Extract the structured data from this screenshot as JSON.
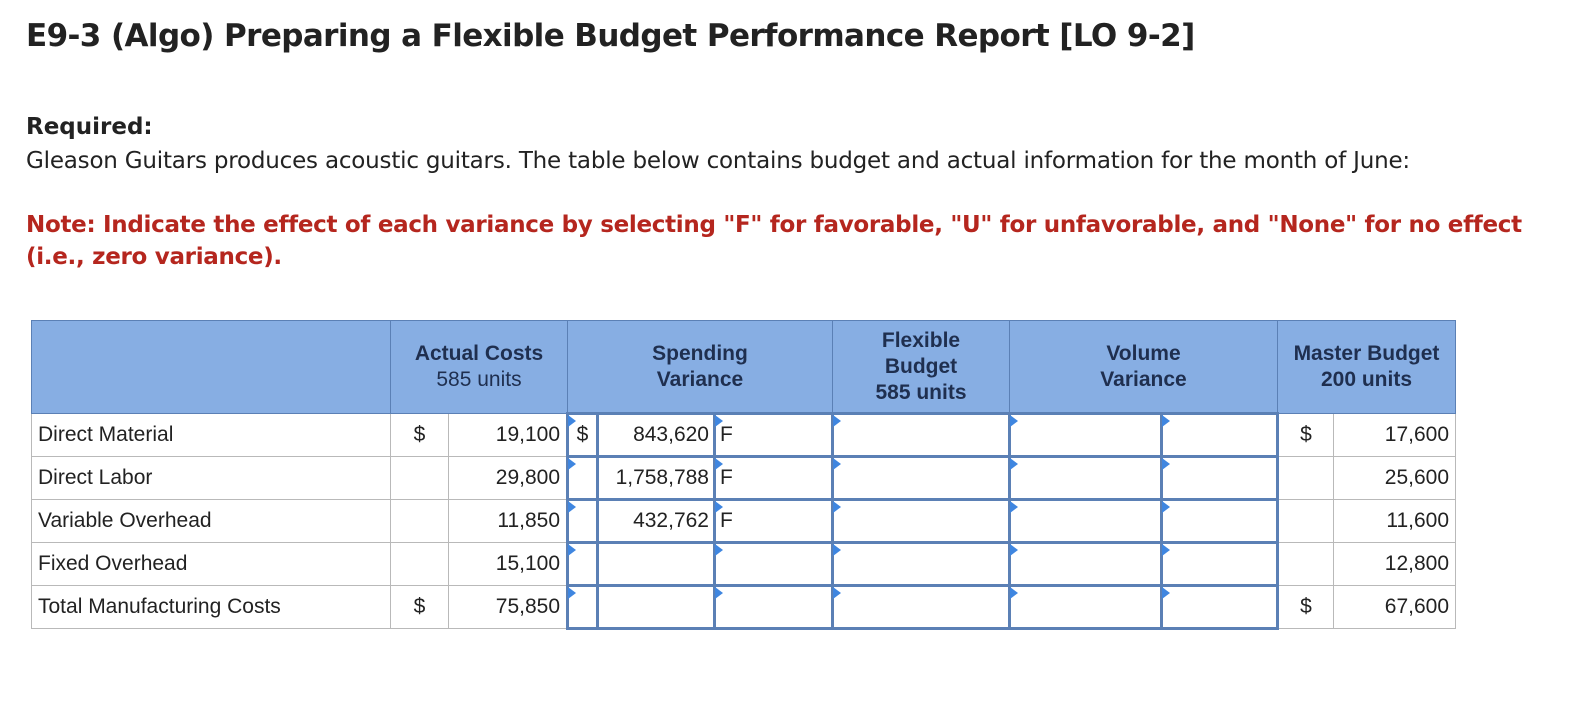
{
  "title": "E9-3 (Algo) Preparing a Flexible Budget Performance Report [LO 9-2]",
  "required_label": "Required:",
  "problem_text": "Gleason Guitars produces acoustic guitars. The table below contains budget and actual information for the month of June:",
  "note_text": "Note: Indicate the effect of each variance by selecting \"F\" for favorable, \"U\" for unfavorable, and \"None\" for no effect (i.e., zero variance).",
  "table": {
    "headers": {
      "actual_line1": "Actual Costs",
      "actual_line2": "585 units",
      "spending_line1": "Spending",
      "spending_line2": "Variance",
      "flexible_line1": "Flexible",
      "flexible_line2": "Budget",
      "flexible_line3": "585 units",
      "volume_line1": "Volume",
      "volume_line2": "Variance",
      "master_line1": "Master Budget",
      "master_line2": "200 units"
    },
    "rows": [
      {
        "label": "Direct Material",
        "actual_dollar": "$",
        "actual": "19,100",
        "spending_dollar": "$",
        "spending": "843,620",
        "spending_effect": "F",
        "flexible": "",
        "volume": "",
        "volume_effect": "",
        "master_dollar": "$",
        "master": "17,600"
      },
      {
        "label": "Direct Labor",
        "actual_dollar": "",
        "actual": "29,800",
        "spending_dollar": "",
        "spending": "1,758,788",
        "spending_effect": "F",
        "flexible": "",
        "volume": "",
        "volume_effect": "",
        "master_dollar": "",
        "master": "25,600"
      },
      {
        "label": "Variable Overhead",
        "actual_dollar": "",
        "actual": "11,850",
        "spending_dollar": "",
        "spending": "432,762",
        "spending_effect": "F",
        "flexible": "",
        "volume": "",
        "volume_effect": "",
        "master_dollar": "",
        "master": "11,600"
      },
      {
        "label": "Fixed Overhead",
        "actual_dollar": "",
        "actual": "15,100",
        "spending_dollar": "",
        "spending": "",
        "spending_effect": "",
        "flexible": "",
        "volume": "",
        "volume_effect": "",
        "master_dollar": "",
        "master": "12,800"
      },
      {
        "label": "Total Manufacturing Costs",
        "actual_dollar": "$",
        "actual": "75,850",
        "spending_dollar": "",
        "spending": "",
        "spending_effect": "",
        "flexible": "",
        "volume": "",
        "volume_effect": "",
        "master_dollar": "$",
        "master": "67,600"
      }
    ]
  },
  "colors": {
    "header_bg": "#87aee3",
    "note_red": "#b5261e",
    "input_border": "#5b80b5",
    "marker_blue": "#3f86e0"
  }
}
